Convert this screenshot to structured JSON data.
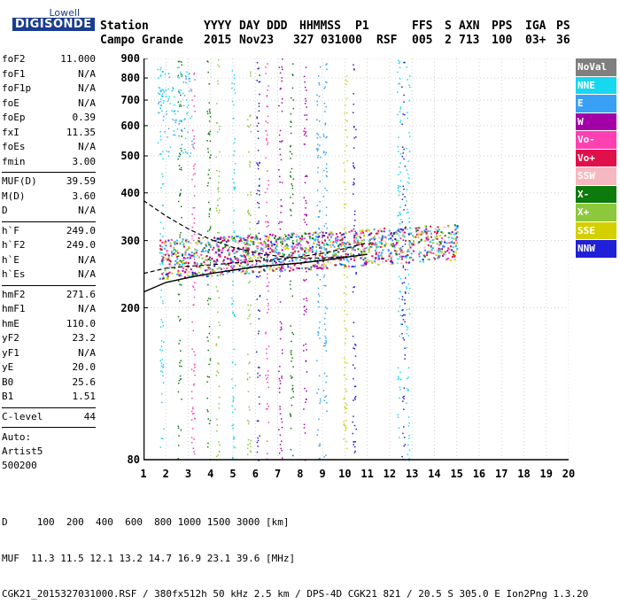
{
  "logo": {
    "top": "Lowell",
    "main": "DIGISONDE"
  },
  "header": {
    "labels": [
      "Station",
      "YYYY",
      "DAY",
      "DDD",
      "HHMMSS",
      "P1",
      "FFS",
      "S",
      "AXN",
      "PPS",
      "IGA",
      "PS"
    ],
    "values": [
      "Campo Grande",
      "2015",
      "Nov23",
      "327",
      "031000",
      "RSF",
      "005",
      "2",
      "713",
      "100",
      "03+",
      "36"
    ]
  },
  "params": {
    "group1": [
      {
        "name": "foF2",
        "value": "11.000"
      },
      {
        "name": "foF1",
        "value": "N/A"
      },
      {
        "name": "foF1p",
        "value": "N/A"
      },
      {
        "name": "foE",
        "value": "N/A"
      },
      {
        "name": "foEp",
        "value": "0.39"
      },
      {
        "name": "fxI",
        "value": "11.35"
      },
      {
        "name": "foEs",
        "value": "N/A"
      },
      {
        "name": "fmin",
        "value": "3.00"
      }
    ],
    "group2": [
      {
        "name": "MUF(D)",
        "value": "39.59"
      },
      {
        "name": "M(D)",
        "value": "3.60"
      },
      {
        "name": "D",
        "value": "N/A"
      }
    ],
    "group3": [
      {
        "name": "h`F",
        "value": "249.0"
      },
      {
        "name": "h`F2",
        "value": "249.0"
      },
      {
        "name": "h`E",
        "value": "N/A"
      },
      {
        "name": "h`Es",
        "value": "N/A"
      }
    ],
    "group4": [
      {
        "name": "hmF2",
        "value": "271.6"
      },
      {
        "name": "hmF1",
        "value": "N/A"
      },
      {
        "name": "hmE",
        "value": "110.0"
      },
      {
        "name": "yF2",
        "value": "23.2"
      },
      {
        "name": "yF1",
        "value": "N/A"
      },
      {
        "name": "yE",
        "value": "20.0"
      },
      {
        "name": "B0",
        "value": "25.6"
      },
      {
        "name": "B1",
        "value": "1.51"
      }
    ],
    "group5": [
      {
        "name": "C-level",
        "value": "44"
      }
    ]
  },
  "auto": {
    "line1": "Auto:",
    "line2": "Artist5",
    "line3": "500200"
  },
  "legend": [
    {
      "label": "NoVal",
      "color": "#7f7f7f"
    },
    {
      "label": "NNE",
      "color": "#18d8f0"
    },
    {
      "label": "E",
      "color": "#3aa0f5"
    },
    {
      "label": "W",
      "color": "#a400a8"
    },
    {
      "label": "Vo-",
      "color": "#ff40b0"
    },
    {
      "label": "Vo+",
      "color": "#e0104a"
    },
    {
      "label": "SSW",
      "color": "#f6b8c0"
    },
    {
      "label": "X-",
      "color": "#0c7a0c"
    },
    {
      "label": "X+",
      "color": "#8cc83c"
    },
    {
      "label": "SSE",
      "color": "#d4d000"
    },
    {
      "label": "NNW",
      "color": "#2020d8"
    }
  ],
  "chart_data": {
    "type": "scatter",
    "xlim": [
      1,
      20
    ],
    "ylim": [
      80,
      900
    ],
    "y_scale": "log",
    "x_ticks": [
      "1",
      "2",
      "3",
      "4",
      "5",
      "6",
      "7",
      "8",
      "9",
      "10",
      "11",
      "12",
      "13",
      "14",
      "15",
      "16",
      "17",
      "18",
      "19",
      "20"
    ],
    "y_ticks": [
      {
        "v": 80,
        "label": "80"
      },
      {
        "v": 200,
        "label": "200"
      },
      {
        "v": 300,
        "label": "300"
      },
      {
        "v": 400,
        "label": "400"
      },
      {
        "v": 500,
        "label": "500"
      },
      {
        "v": 600,
        "label": "600"
      },
      {
        "v": 700,
        "label": "700"
      },
      {
        "v": 800,
        "label": "800"
      },
      {
        "v": 900,
        "label": "900"
      }
    ],
    "grid": true,
    "profile_line": {
      "x": [
        1.0,
        2,
        3,
        4,
        5,
        6,
        7,
        8,
        9,
        10,
        11.0
      ],
      "y": [
        220,
        233,
        240,
        246,
        251,
        256,
        259,
        262,
        266,
        271,
        276
      ]
    },
    "profile_upper_dashed": {
      "x": [
        1.0,
        2,
        3,
        4,
        5,
        6,
        7,
        8,
        9,
        10,
        11.0
      ],
      "y": [
        382,
        348,
        322,
        302,
        288,
        279,
        273,
        270,
        270,
        272,
        276
      ]
    },
    "profile_lower_dashed": {
      "x": [
        1.0,
        2,
        3,
        4,
        5,
        6,
        7,
        8,
        9,
        10,
        11.0
      ],
      "y": [
        246,
        254,
        257,
        259,
        262,
        265,
        268,
        272,
        278,
        286,
        296
      ]
    },
    "echo_band": {
      "x_start": 1.7,
      "x_end": 15.0,
      "y_min": 250,
      "y_max": 330
    },
    "vertical_streaks_x": [
      1.8,
      2.6,
      3.2,
      3.9,
      4.3,
      5.0,
      5.7,
      6.1,
      6.5,
      7.1,
      7.6,
      8.2,
      8.8,
      9.1,
      10.0,
      10.4,
      12.4,
      12.6,
      12.8
    ]
  },
  "bottom": {
    "line1": "D     100  200  400  600  800 1000 1500 3000 [km]",
    "line2": "MUF  11.3 11.5 12.1 13.2 14.7 16.9 23.1 39.6 [MHz]",
    "line3": "CGK21_2015327031000.RSF / 380fx512h 50 kHz 2.5 km / DPS-4D CGK21 821 / 20.5 S 305.0 E Ion2Png 1.3.20"
  }
}
